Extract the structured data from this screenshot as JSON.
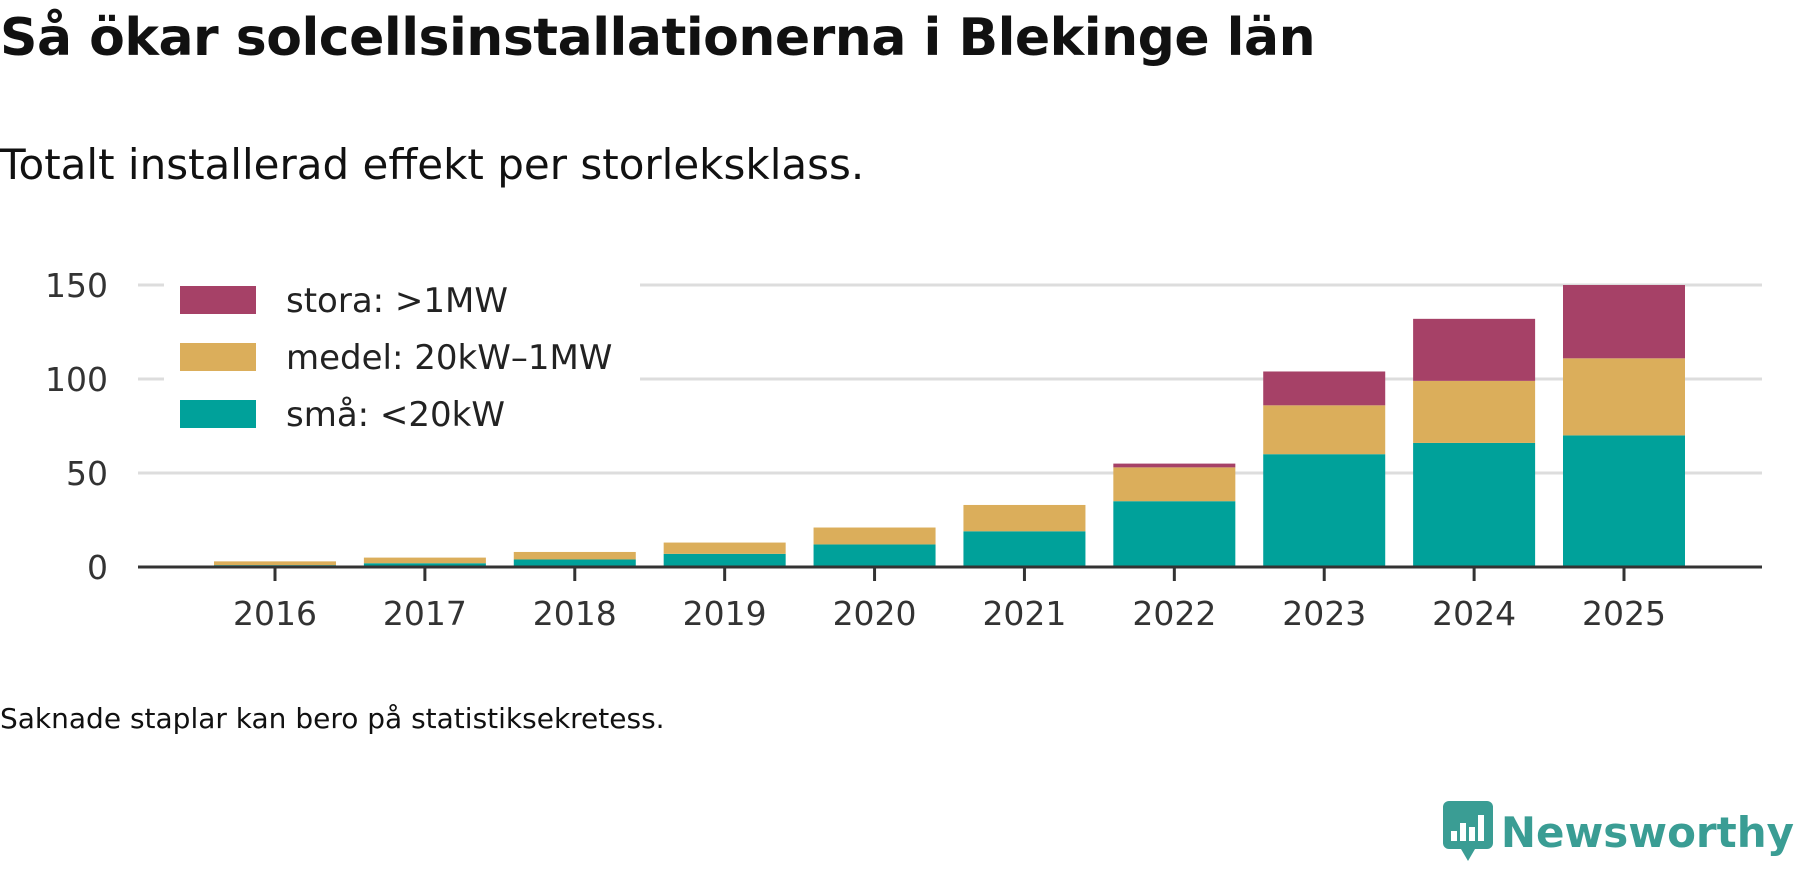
{
  "header": {
    "title": "Så ökar solcellsinstallationerna i Blekinge län",
    "subtitle": "Totalt installerad effekt per storleksklass."
  },
  "footer": {
    "note": "Saknade staplar kan bero på statistiksekretess.",
    "brand": "Newsworthy"
  },
  "colors": {
    "stora": "#a64167",
    "medel": "#dbae5b",
    "sma": "#00a19a",
    "grid": "#dddddd",
    "axis": "#333333",
    "brand": "#3a9d94"
  },
  "chart_data": {
    "type": "bar",
    "stacked": true,
    "title": "Så ökar solcellsinstallationerna i Blekinge län",
    "subtitle": "Totalt installerad effekt per storleksklass.",
    "xlabel": "",
    "ylabel": "",
    "ylim": [
      0,
      150
    ],
    "yticks": [
      "0",
      "50",
      "100",
      "150"
    ],
    "grid": true,
    "legend_position": "top-left",
    "categories": [
      "2016",
      "2017",
      "2018",
      "2019",
      "2020",
      "2021",
      "2022",
      "2023",
      "2024",
      "2025"
    ],
    "series": [
      {
        "name": "små: <20kW",
        "key": "sma",
        "values": [
          1,
          2,
          4,
          7,
          12,
          19,
          35,
          60,
          66,
          70
        ]
      },
      {
        "name": "medel: 20kW–1MW",
        "key": "medel",
        "values": [
          2,
          3,
          4,
          6,
          9,
          14,
          18,
          26,
          33,
          41
        ]
      },
      {
        "name": "stora: >1MW",
        "key": "stora",
        "values": [
          0,
          0,
          0,
          0,
          0,
          0,
          2,
          18,
          33,
          39
        ]
      }
    ],
    "legend_order": [
      "stora: >1MW",
      "medel: 20kW–1MW",
      "små: <20kW"
    ]
  }
}
